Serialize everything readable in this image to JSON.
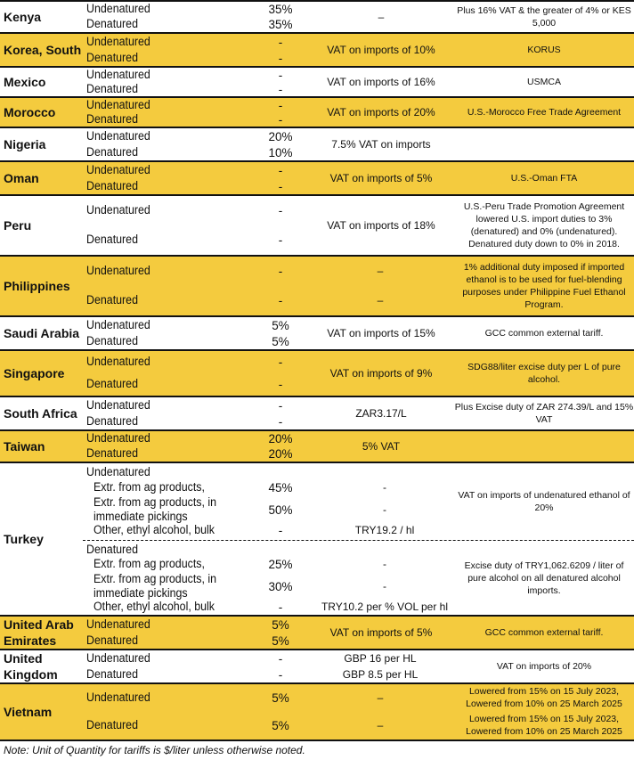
{
  "colors": {
    "highlight": "#F4CB3E",
    "border": "#111111"
  },
  "rows": [
    {
      "country": "Kenya",
      "shade": false,
      "lines": [
        {
          "type": "Undenatured",
          "tariff": "35%"
        },
        {
          "type": "Denatured",
          "tariff": "35%"
        }
      ],
      "other": "–",
      "notes": "Plus 16% VAT & the greater of 4% or KES 5,000"
    },
    {
      "country": "Korea, South",
      "shade": true,
      "lines": [
        {
          "type": "Undenatured",
          "tariff": "-"
        },
        {
          "type": "Denatured",
          "tariff": "-"
        }
      ],
      "other": "VAT on imports of 10%",
      "notes": "KORUS"
    },
    {
      "country": "Mexico",
      "shade": false,
      "lines": [
        {
          "type": "Undenatured",
          "tariff": "-"
        },
        {
          "type": "Denatured",
          "tariff": "-"
        }
      ],
      "other": "VAT on imports of 16%",
      "notes": "USMCA"
    },
    {
      "country": "Morocco",
      "shade": true,
      "lines": [
        {
          "type": "Undenatured",
          "tariff": "-"
        },
        {
          "type": "Denatured",
          "tariff": "-"
        }
      ],
      "other": "VAT on imports of 20%",
      "notes": "U.S.-Morocco Free Trade Agreement"
    },
    {
      "country": "Nigeria",
      "shade": false,
      "lines": [
        {
          "type": "Undenatured",
          "tariff": "20%"
        },
        {
          "type": "Denatured",
          "tariff": "10%"
        }
      ],
      "other": "7.5% VAT on imports",
      "notes": ""
    },
    {
      "country": "Oman",
      "shade": true,
      "lines": [
        {
          "type": "Undenatured",
          "tariff": "-"
        },
        {
          "type": "Denatured",
          "tariff": "-"
        }
      ],
      "other": "VAT on imports of 5%",
      "notes": "U.S.-Oman FTA"
    },
    {
      "country": "Peru",
      "shade": false,
      "lines": [
        {
          "type": "Undenatured",
          "tariff": "-"
        },
        {
          "type": "Denatured",
          "tariff": "-"
        }
      ],
      "other": "VAT on imports of 18%",
      "notes": "U.S.-Peru Trade Promotion Agreement lowered U.S. import duties to 3% (denatured) and 0% (undenatured). Denatured duty down to 0% in 2018."
    },
    {
      "country": "Philippines",
      "shade": true,
      "lines": [
        {
          "type": "Undenatured",
          "tariff": "-",
          "other": "–"
        },
        {
          "type": "Denatured",
          "tariff": "-",
          "other": "–"
        }
      ],
      "notes": "1% additional duty imposed if imported ethanol is to be used for fuel-blending purposes under Philippine Fuel Ethanol Program."
    },
    {
      "country": "Saudi Arabia",
      "shade": false,
      "lines": [
        {
          "type": "Undenatured",
          "tariff": "5%"
        },
        {
          "type": "Denatured",
          "tariff": "5%"
        }
      ],
      "other": "VAT on imports of 15%",
      "notes": "GCC common external tariff."
    },
    {
      "country": "Singapore",
      "shade": true,
      "lines": [
        {
          "type": "Undenatured",
          "tariff": "-"
        },
        {
          "type": "Denatured",
          "tariff": "-"
        }
      ],
      "other": "VAT on imports of 9%",
      "notes": "SDG88/liter excise duty per L of pure alcohol."
    },
    {
      "country": "South Africa",
      "shade": false,
      "lines": [
        {
          "type": "Undenatured",
          "tariff": "-"
        },
        {
          "type": "Denatured",
          "tariff": "-"
        }
      ],
      "other": "ZAR3.17/L",
      "notes": "Plus Excise duty of ZAR 274.39/L and 15% VAT"
    },
    {
      "country": "Taiwan",
      "shade": true,
      "lines": [
        {
          "type": "Undenatured",
          "tariff": "20%"
        },
        {
          "type": "Denatured",
          "tariff": "20%"
        }
      ],
      "other": "5% VAT",
      "notes": ""
    },
    {
      "country": "Turkey",
      "shade": false,
      "sections": [
        {
          "lines": [
            {
              "type": "Undenatured",
              "tariff": "",
              "other": ""
            },
            {
              "type": "Extr. from ag products,",
              "tariff": "45%",
              "other": "-",
              "ind": true
            },
            {
              "type": "Extr. from ag products, in immediate pickings",
              "tariff": "50%",
              "other": "-",
              "ind": true
            },
            {
              "type": "Other, ethyl alcohol, bulk",
              "tariff": "-",
              "other": "TRY19.2 / hl",
              "ind": true
            }
          ],
          "notes": "VAT on imports of undenatured ethanol of 20%"
        },
        {
          "lines": [
            {
              "type": "Denatured",
              "tariff": "",
              "other": ""
            },
            {
              "type": "Extr. from ag products,",
              "tariff": "25%",
              "other": "-",
              "ind": true
            },
            {
              "type": "Extr. from ag products, in immediate pickings",
              "tariff": "30%",
              "other": "-",
              "ind": true
            },
            {
              "type": "Other, ethyl alcohol, bulk",
              "tariff": "-",
              "other": "TRY10.2 per % VOL per hl",
              "ind": true
            }
          ],
          "notes": "Excise duty of TRY1,062.6209 / liter of pure alcohol on all denatured alcohol imports."
        }
      ]
    },
    {
      "country": "United Arab Emirates",
      "shade": true,
      "lines": [
        {
          "type": "Undenatured",
          "tariff": "5%"
        },
        {
          "type": "Denatured",
          "tariff": "5%"
        }
      ],
      "other": "VAT on imports of 5%",
      "notes": "GCC common external tariff."
    },
    {
      "country": "United Kingdom",
      "shade": false,
      "lines": [
        {
          "type": "Undenatured",
          "tariff": "-",
          "other": "GBP 16 per HL"
        },
        {
          "type": "Denatured",
          "tariff": "-",
          "other": "GBP 8.5 per HL"
        }
      ],
      "notes": "VAT on imports of 20%"
    },
    {
      "country": "Vietnam",
      "shade": true,
      "lines": [
        {
          "type": "Undenatured",
          "tariff": "5%",
          "other": "–",
          "note": "Lowered from 15% on 15 July 2023, Lowered from 10% on 25 March 2025"
        },
        {
          "type": "Denatured",
          "tariff": "5%",
          "other": "–",
          "note": "Lowered from 15% on 15 July 2023, Lowered from 10% on 25 March 2025"
        }
      ]
    }
  ],
  "footnote": "Note: Unit of Quantity for tariffs is $/liter unless otherwise noted."
}
